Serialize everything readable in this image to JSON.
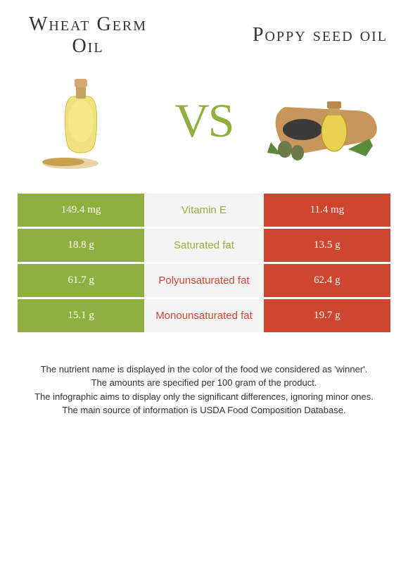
{
  "left": {
    "title": "Wheat Germ Oil",
    "color": "#8fb03e"
  },
  "right": {
    "title": "Poppy seed oil",
    "color": "#ce4630"
  },
  "vs": "VS",
  "rows": [
    {
      "left": "149.4 mg",
      "name": "Vitamin E",
      "right": "11.4 mg",
      "winner": "left"
    },
    {
      "left": "18.8 g",
      "name": "Saturated fat",
      "right": "13.5 g",
      "winner": "left"
    },
    {
      "left": "61.7 g",
      "name": "Polyunsaturated fat",
      "right": "62.4 g",
      "winner": "right"
    },
    {
      "left": "15.1 g",
      "name": "Monounsaturated fat",
      "right": "19.7 g",
      "winner": "right"
    }
  ],
  "footer": {
    "l1": "The nutrient name is displayed in the color of the food we considered as 'winner'.",
    "l2": "The amounts are specified per 100 gram of the product.",
    "l3": "The infographic aims to display only the significant differences, ignoring minor ones.",
    "l4": "The main source of information is USDA Food Composition Database."
  },
  "style": {
    "left_bg": "#8fb03e",
    "mid_bg": "#f5f5f5",
    "right_bg": "#ce4630",
    "title_fontsize": 28,
    "vs_fontsize": 68,
    "cell_fontsize": 15,
    "footer_fontsize": 13
  }
}
